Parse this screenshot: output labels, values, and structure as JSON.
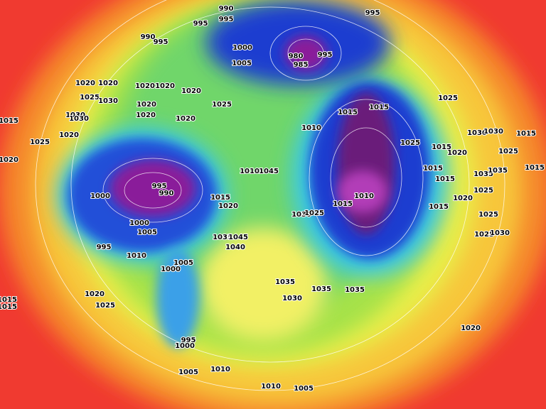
{
  "pressure_labels": [
    990,
    995,
    995,
    995,
    990,
    995,
    1000,
    980,
    995,
    985,
    1005,
    1020,
    1020,
    1025,
    1030,
    1020,
    1020,
    1020,
    1025,
    1015,
    1015,
    1025,
    1030,
    1020,
    1020,
    1020,
    1015,
    1030,
    1020,
    1010,
    1030,
    1030,
    1015,
    1025,
    1025,
    1015,
    1020,
    1025,
    1020,
    1010,
    1045,
    1015,
    1015,
    1035,
    1035,
    1015,
    995,
    990,
    1000,
    1015,
    1010,
    1020,
    1015,
    1025,
    1020,
    1030,
    1025,
    1015,
    1025,
    1000,
    1005,
    1035,
    1045,
    1025,
    1030,
    995,
    1040,
    1010,
    1005,
    1000,
    1035,
    1035,
    1035,
    1030,
    1020,
    1025,
    1015,
    1015,
    1020,
    995,
    1000,
    1005,
    1010,
    1010,
    1005
  ]
}
